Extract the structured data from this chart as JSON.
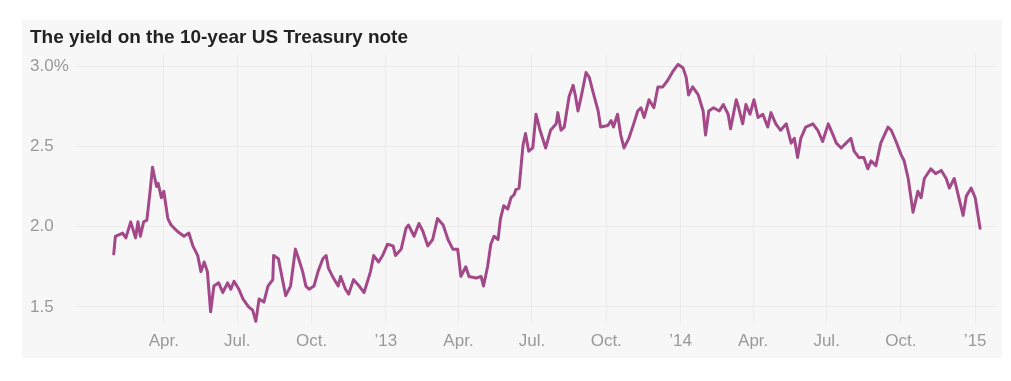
{
  "chart_data": {
    "type": "line",
    "title": "The yield on the 10-year US Treasury note",
    "x": [
      "2012-01-30",
      "2012-02-01",
      "2012-02-10",
      "2012-02-14",
      "2012-02-20",
      "2012-02-26",
      "2012-02-29",
      "2012-03-03",
      "2012-03-07",
      "2012-03-11",
      "2012-03-15",
      "2012-03-18",
      "2012-03-23",
      "2012-03-25",
      "2012-03-29",
      "2012-04-01",
      "2012-04-06",
      "2012-04-10",
      "2012-04-18",
      "2012-04-26",
      "2012-05-02",
      "2012-05-07",
      "2012-05-13",
      "2012-05-17",
      "2012-05-21",
      "2012-05-25",
      "2012-05-29",
      "2012-06-02",
      "2012-06-08",
      "2012-06-13",
      "2012-06-19",
      "2012-06-23",
      "2012-06-27",
      "2012-07-03",
      "2012-07-08",
      "2012-07-15",
      "2012-07-20",
      "2012-07-24",
      "2012-07-28",
      "2012-08-03",
      "2012-08-08",
      "2012-08-14",
      "2012-08-15",
      "2012-08-21",
      "2012-08-26",
      "2012-08-30",
      "2012-09-05",
      "2012-09-11",
      "2012-09-15",
      "2012-09-20",
      "2012-09-24",
      "2012-09-28",
      "2012-10-04",
      "2012-10-09",
      "2012-10-15",
      "2012-10-19",
      "2012-10-22",
      "2012-10-27",
      "2012-11-03",
      "2012-11-06",
      "2012-11-12",
      "2012-11-16",
      "2012-11-22",
      "2012-11-29",
      "2012-12-05",
      "2012-12-10",
      "2012-12-13",
      "2012-12-17",
      "2012-12-23",
      "2012-12-28",
      "2013-01-03",
      "2013-01-10",
      "2013-01-13",
      "2013-01-20",
      "2013-01-26",
      "2013-01-29",
      "2013-02-05",
      "2013-02-11",
      "2013-02-16",
      "2013-02-22",
      "2013-02-28",
      "2013-03-06",
      "2013-03-13",
      "2013-03-19",
      "2013-03-25",
      "2013-03-31",
      "2013-04-04",
      "2013-04-10",
      "2013-04-14",
      "2013-04-23",
      "2013-04-29",
      "2013-05-02",
      "2013-05-07",
      "2013-05-11",
      "2013-05-15",
      "2013-05-20",
      "2013-05-23",
      "2013-05-27",
      "2013-06-01",
      "2013-06-05",
      "2013-06-09",
      "2013-06-11",
      "2013-06-15",
      "2013-06-20",
      "2013-06-23",
      "2013-06-27",
      "2013-07-02",
      "2013-07-06",
      "2013-07-11",
      "2013-07-18",
      "2013-07-24",
      "2013-07-31",
      "2013-08-02",
      "2013-08-06",
      "2013-08-10",
      "2013-08-16",
      "2013-08-21",
      "2013-08-24",
      "2013-08-27",
      "2013-08-31",
      "2013-09-06",
      "2013-09-10",
      "2013-09-14",
      "2013-09-21",
      "2013-09-24",
      "2013-10-03",
      "2013-10-07",
      "2013-10-10",
      "2013-10-15",
      "2013-10-19",
      "2013-10-23",
      "2013-10-29",
      "2013-11-04",
      "2013-11-09",
      "2013-11-13",
      "2013-11-17",
      "2013-11-23",
      "2013-11-29",
      "2013-12-04",
      "2013-12-10",
      "2013-12-16",
      "2013-12-23",
      "2013-12-29",
      "2014-01-04",
      "2014-01-08",
      "2014-01-11",
      "2014-01-16",
      "2014-01-23",
      "2014-01-29",
      "2014-02-01",
      "2014-02-05",
      "2014-02-11",
      "2014-02-18",
      "2014-02-23",
      "2014-03-01",
      "2014-03-04",
      "2014-03-11",
      "2014-03-14",
      "2014-03-19",
      "2014-03-23",
      "2014-03-28",
      "2014-04-02",
      "2014-04-07",
      "2014-04-13",
      "2014-04-19",
      "2014-04-23",
      "2014-04-29",
      "2014-05-05",
      "2014-05-12",
      "2014-05-18",
      "2014-05-22",
      "2014-05-26",
      "2014-05-30",
      "2014-06-05",
      "2014-06-14",
      "2014-06-20",
      "2014-06-26",
      "2014-07-03",
      "2014-07-09",
      "2014-07-13",
      "2014-07-19",
      "2014-07-25",
      "2014-07-31",
      "2014-08-04",
      "2014-08-10",
      "2014-08-16",
      "2014-08-21",
      "2014-08-25",
      "2014-08-31",
      "2014-09-06",
      "2014-09-15",
      "2014-09-19",
      "2014-09-25",
      "2014-10-01",
      "2014-10-05",
      "2014-10-10",
      "2014-10-16",
      "2014-10-22",
      "2014-10-26",
      "2014-10-30",
      "2014-11-07",
      "2014-11-13",
      "2014-11-20",
      "2014-11-26",
      "2014-11-30",
      "2014-12-06",
      "2014-12-17",
      "2014-12-21",
      "2014-12-27",
      "2015-01-01",
      "2015-01-07"
    ],
    "series": [
      {
        "color": "#a3498a",
        "values": [
          1.83,
          1.94,
          1.96,
          1.93,
          2.03,
          1.93,
          2.03,
          1.94,
          2.03,
          2.04,
          2.22,
          2.37,
          2.25,
          2.27,
          2.18,
          2.22,
          2.05,
          2.01,
          1.97,
          1.94,
          1.96,
          1.88,
          1.82,
          1.72,
          1.78,
          1.72,
          1.47,
          1.63,
          1.65,
          1.59,
          1.65,
          1.61,
          1.66,
          1.61,
          1.55,
          1.5,
          1.48,
          1.41,
          1.55,
          1.53,
          1.63,
          1.67,
          1.82,
          1.8,
          1.67,
          1.57,
          1.63,
          1.86,
          1.8,
          1.72,
          1.63,
          1.61,
          1.63,
          1.72,
          1.8,
          1.82,
          1.74,
          1.69,
          1.63,
          1.69,
          1.61,
          1.58,
          1.67,
          1.63,
          1.59,
          1.67,
          1.72,
          1.82,
          1.78,
          1.82,
          1.89,
          1.88,
          1.82,
          1.86,
          1.99,
          2.01,
          1.94,
          2.02,
          1.97,
          1.88,
          1.92,
          2.05,
          2.01,
          1.92,
          1.86,
          1.86,
          1.69,
          1.75,
          1.69,
          1.68,
          1.69,
          1.63,
          1.75,
          1.89,
          1.94,
          1.92,
          2.05,
          2.13,
          2.11,
          2.18,
          2.2,
          2.23,
          2.24,
          2.51,
          2.58,
          2.47,
          2.49,
          2.7,
          2.6,
          2.49,
          2.6,
          2.64,
          2.71,
          2.6,
          2.62,
          2.81,
          2.88,
          2.81,
          2.72,
          2.81,
          2.96,
          2.93,
          2.85,
          2.72,
          2.62,
          2.63,
          2.66,
          2.62,
          2.7,
          2.57,
          2.49,
          2.55,
          2.64,
          2.72,
          2.74,
          2.68,
          2.79,
          2.74,
          2.87,
          2.87,
          2.91,
          2.97,
          3.01,
          2.99,
          2.93,
          2.82,
          2.87,
          2.82,
          2.72,
          2.57,
          2.72,
          2.74,
          2.72,
          2.76,
          2.7,
          2.61,
          2.79,
          2.74,
          2.64,
          2.76,
          2.7,
          2.79,
          2.68,
          2.7,
          2.62,
          2.71,
          2.64,
          2.6,
          2.64,
          2.52,
          2.55,
          2.43,
          2.55,
          2.62,
          2.64,
          2.6,
          2.53,
          2.64,
          2.57,
          2.52,
          2.49,
          2.52,
          2.55,
          2.47,
          2.43,
          2.43,
          2.36,
          2.41,
          2.38,
          2.52,
          2.62,
          2.6,
          2.53,
          2.45,
          2.41,
          2.3,
          2.09,
          2.22,
          2.18,
          2.3,
          2.36,
          2.33,
          2.35,
          2.3,
          2.24,
          2.3,
          2.07,
          2.19,
          2.24,
          2.18,
          1.99
        ]
      }
    ],
    "xlim": [
      "2011-12-13",
      "2015-01-28"
    ],
    "xticks": [
      {
        "value": "2012-04-01",
        "label": "Apr."
      },
      {
        "value": "2012-07-01",
        "label": "Jul."
      },
      {
        "value": "2012-10-01",
        "label": "Oct."
      },
      {
        "value": "2013-01-01",
        "label": "’13"
      },
      {
        "value": "2013-04-01",
        "label": "Apr."
      },
      {
        "value": "2013-07-01",
        "label": "Jul."
      },
      {
        "value": "2013-10-01",
        "label": "Oct."
      },
      {
        "value": "2014-01-01",
        "label": "’14"
      },
      {
        "value": "2014-04-01",
        "label": "Apr."
      },
      {
        "value": "2014-07-01",
        "label": "Jul."
      },
      {
        "value": "2014-10-01",
        "label": "Oct."
      },
      {
        "value": "2015-01-01",
        "label": "’15"
      }
    ],
    "ylim": [
      1.4,
      3.07
    ],
    "yticks": [
      1.5,
      {
        "value": 2,
        "label": "2.0"
      },
      2.5,
      {
        "value": 3,
        "label": "3.0%"
      }
    ],
    "grid": true
  }
}
